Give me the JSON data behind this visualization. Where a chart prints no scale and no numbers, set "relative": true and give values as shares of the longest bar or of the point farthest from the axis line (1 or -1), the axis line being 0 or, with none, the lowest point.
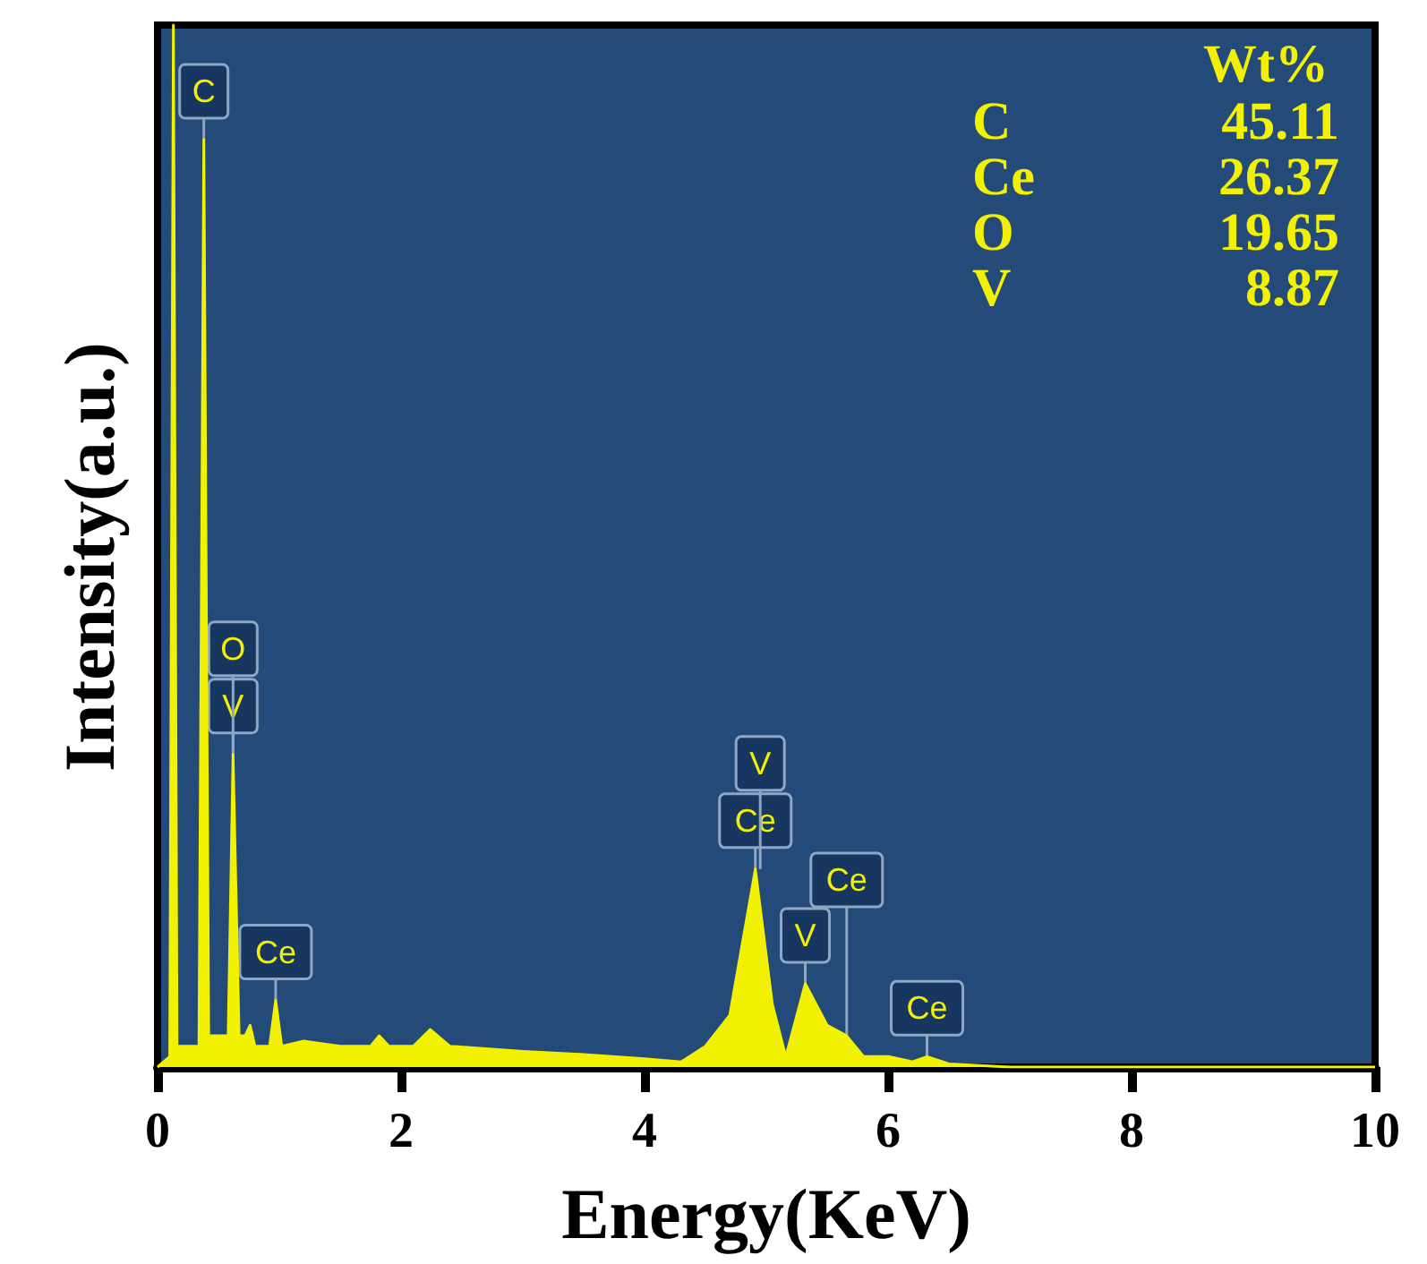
{
  "chart_data": {
    "type": "area",
    "relative": true,
    "xlabel": "Energy(KeV)",
    "ylabel": "Intensity(a.u.)",
    "color": "#f2f200",
    "grid": false,
    "marker": "none",
    "xlim": [
      0,
      10
    ],
    "xticks": [
      0,
      2,
      4,
      6,
      8,
      10
    ],
    "x": [
      0,
      0.1,
      0.13,
      0.16,
      0.34,
      0.38,
      0.42,
      0.58,
      0.62,
      0.67,
      0.72,
      0.76,
      0.8,
      0.92,
      0.97,
      1.02,
      1.2,
      1.5,
      1.75,
      1.82,
      1.9,
      2.1,
      2.24,
      2.4,
      3,
      3.5,
      4,
      4.3,
      4.5,
      4.7,
      4.91,
      5.05,
      5.16,
      5.32,
      5.5,
      5.66,
      5.8,
      6.01,
      6.2,
      6.32,
      6.5,
      7,
      10
    ],
    "values": [
      0,
      0.01,
      1,
      0.02,
      0.02,
      0.89,
      0.03,
      0.03,
      0.3,
      0.03,
      0.03,
      0.04,
      0.02,
      0.02,
      0.064,
      0.02,
      0.025,
      0.02,
      0.02,
      0.03,
      0.02,
      0.02,
      0.036,
      0.02,
      0.015,
      0.012,
      0.008,
      0.005,
      0.02,
      0.05,
      0.19,
      0.06,
      0.01,
      0.08,
      0.04,
      0.03,
      0.01,
      0.01,
      0.005,
      0.01,
      0.003,
      0,
      0
    ],
    "annotations": [
      {
        "text": "C",
        "x": 0.38,
        "y": 0.89
      },
      {
        "text": "V",
        "x": 0.62,
        "y": 0.3
      },
      {
        "text": "O",
        "x": 0.62,
        "y": 0.3
      },
      {
        "text": "Ce",
        "x": 0.97,
        "y": 0.064
      },
      {
        "text": "Ce",
        "x": 4.91,
        "y": 0.19
      },
      {
        "text": "V",
        "x": 4.95,
        "y": 0.19
      },
      {
        "text": "V",
        "x": 5.32,
        "y": 0.08
      },
      {
        "text": "Ce",
        "x": 5.66,
        "y": 0.03
      },
      {
        "text": "Ce",
        "x": 6.32,
        "y": 0.01
      },
      "Wt%",
      "C",
      "45.11",
      "Ce",
      "26.37",
      "O",
      "19.65",
      "V",
      "8.87"
    ]
  }
}
